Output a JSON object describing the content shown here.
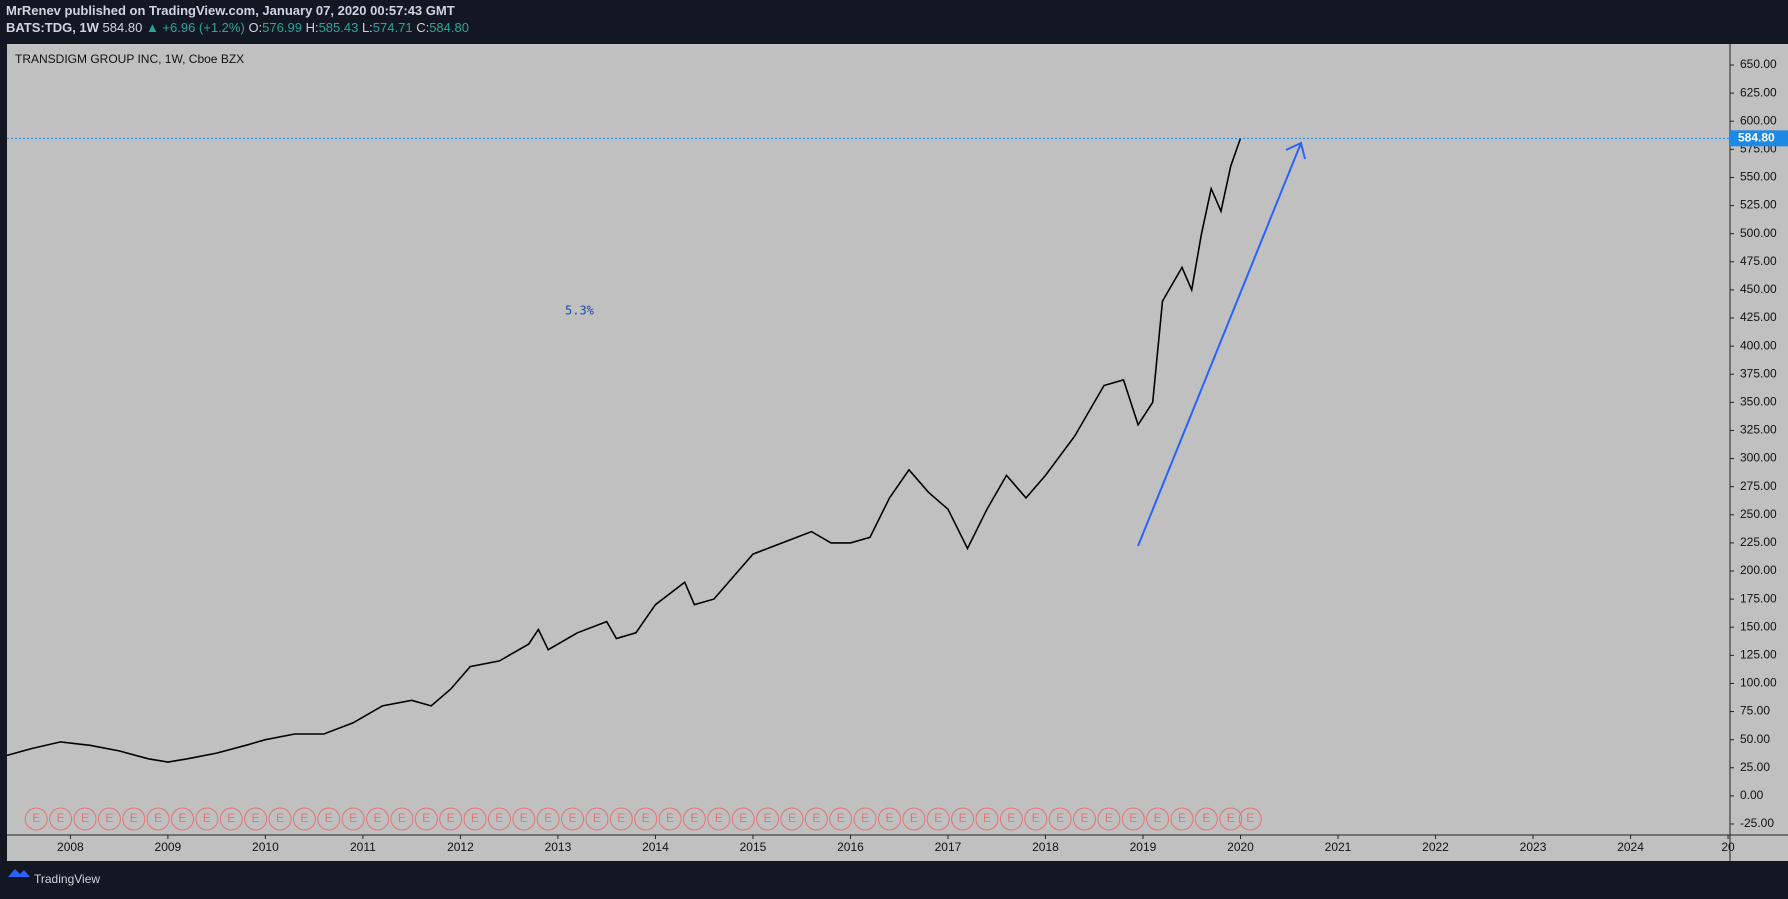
{
  "header": {
    "publisher": "MrRenev published on TradingView.com, January 07, 2020 00:57:43 GMT",
    "symbol": "BATS:TDG, 1W",
    "price": "584.80",
    "change": "▲ +6.96 (+1.2%)",
    "o_label": "O:",
    "o": "576.99",
    "h_label": "H:",
    "h": "585.43",
    "l_label": "L:",
    "l": "574.71",
    "c_label": "C:",
    "c": "584.80"
  },
  "footer": {
    "brand": "TradingView"
  },
  "chart_data": {
    "type": "line",
    "title": "TRANSDIGM GROUP INC, 1W, Cboe BZX",
    "annotation": "5.3%",
    "color": "#000000",
    "x": [
      2007.35,
      2007.6,
      2007.9,
      2008.2,
      2008.5,
      2008.8,
      2009.0,
      2009.2,
      2009.5,
      2009.8,
      2010.0,
      2010.3,
      2010.6,
      2010.9,
      2011.2,
      2011.5,
      2011.7,
      2011.9,
      2012.1,
      2012.4,
      2012.7,
      2012.8,
      2012.9,
      2013.2,
      2013.5,
      2013.6,
      2013.8,
      2014.0,
      2014.3,
      2014.4,
      2014.6,
      2014.8,
      2015.0,
      2015.3,
      2015.6,
      2015.8,
      2016.0,
      2016.2,
      2016.4,
      2016.6,
      2016.8,
      2017.0,
      2017.2,
      2017.4,
      2017.6,
      2017.8,
      2018.0,
      2018.3,
      2018.6,
      2018.8,
      2018.95,
      2019.1,
      2019.2,
      2019.4,
      2019.5,
      2019.6,
      2019.7,
      2019.8,
      2019.9,
      2020.0
    ],
    "values": [
      36,
      42,
      48,
      45,
      40,
      33,
      30,
      33,
      38,
      45,
      50,
      55,
      55,
      65,
      80,
      85,
      80,
      95,
      115,
      120,
      135,
      148,
      130,
      145,
      155,
      140,
      145,
      170,
      190,
      170,
      175,
      195,
      215,
      225,
      235,
      225,
      225,
      230,
      265,
      290,
      270,
      255,
      220,
      255,
      285,
      265,
      285,
      320,
      365,
      370,
      330,
      350,
      440,
      470,
      450,
      500,
      540,
      520,
      560,
      584.8
    ],
    "last_price": {
      "value": 584.8,
      "label": "584.80"
    },
    "earnings": {
      "label": "E",
      "x": [
        2007.65,
        2007.9,
        2008.15,
        2008.4,
        2008.65,
        2008.9,
        2009.15,
        2009.4,
        2009.65,
        2009.9,
        2010.15,
        2010.4,
        2010.65,
        2010.9,
        2011.15,
        2011.4,
        2011.65,
        2011.9,
        2012.15,
        2012.4,
        2012.65,
        2012.9,
        2013.15,
        2013.4,
        2013.65,
        2013.9,
        2014.15,
        2014.4,
        2014.65,
        2014.9,
        2015.15,
        2015.4,
        2015.65,
        2015.9,
        2016.15,
        2016.4,
        2016.65,
        2016.9,
        2017.15,
        2017.4,
        2017.65,
        2017.9,
        2018.15,
        2018.4,
        2018.65,
        2018.9,
        2019.15,
        2019.4,
        2019.65,
        2019.9,
        2020.1
      ]
    },
    "xlim": [
      2007.35,
      2025.02
    ],
    "ylim": [
      -34.8,
      668.7
    ],
    "xticks": [
      2008,
      2009,
      2010,
      2011,
      2012,
      2013,
      2014,
      2015,
      2016,
      2017,
      2018,
      2019,
      2020,
      2021,
      2022,
      2023,
      2024,
      {
        "value": 2025,
        "label": "20"
      }
    ],
    "yticks": [
      {
        "value": -25,
        "label": "-25.00"
      },
      {
        "value": 0,
        "label": "0.00"
      },
      {
        "value": 25,
        "label": "25.00"
      },
      {
        "value": 50,
        "label": "50.00"
      },
      {
        "value": 75,
        "label": "75.00"
      },
      {
        "value": 100,
        "label": "100.00"
      },
      {
        "value": 125,
        "label": "125.00"
      },
      {
        "value": 150,
        "label": "150.00"
      },
      {
        "value": 175,
        "label": "175.00"
      },
      {
        "value": 200,
        "label": "200.00"
      },
      {
        "value": 225,
        "label": "225.00"
      },
      {
        "value": 250,
        "label": "250.00"
      },
      {
        "value": 275,
        "label": "275.00"
      },
      {
        "value": 300,
        "label": "300.00"
      },
      {
        "value": 325,
        "label": "325.00"
      },
      {
        "value": 350,
        "label": "350.00"
      },
      {
        "value": 375,
        "label": "375.00"
      },
      {
        "value": 400,
        "label": "400.00"
      },
      {
        "value": 425,
        "label": "425.00"
      },
      {
        "value": 450,
        "label": "450.00"
      },
      {
        "value": 475,
        "label": "475.00"
      },
      {
        "value": 500,
        "label": "500.00"
      },
      {
        "value": 525,
        "label": "525.00"
      },
      {
        "value": 550,
        "label": "550.00"
      },
      {
        "value": 575,
        "label": "575.00"
      },
      {
        "value": 600,
        "label": "600.00"
      },
      {
        "value": 625,
        "label": "625.00"
      },
      {
        "value": 650,
        "label": "650.00"
      }
    ]
  }
}
